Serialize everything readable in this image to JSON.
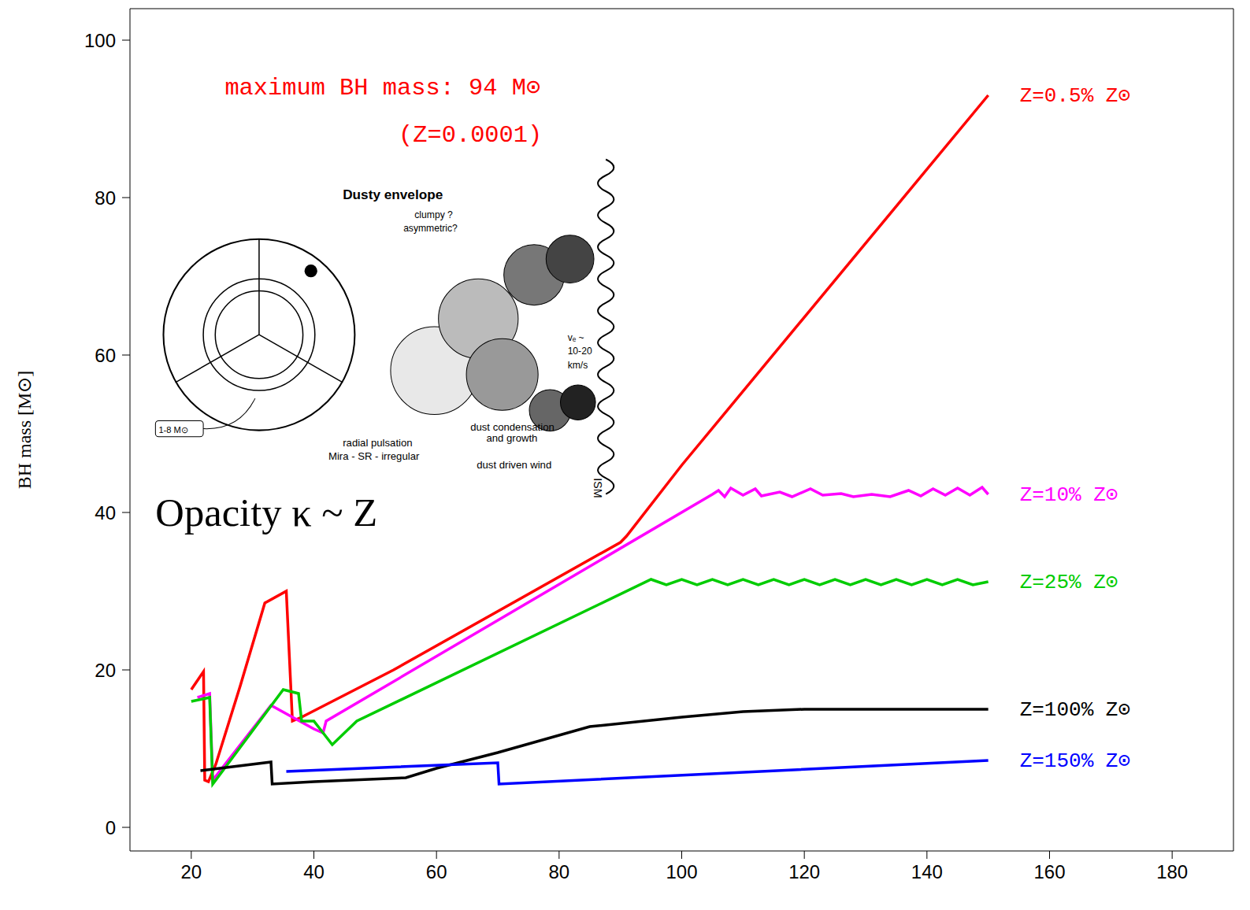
{
  "chart_data": {
    "type": "line",
    "xlim": [
      10,
      190
    ],
    "xticks": [
      20,
      40,
      60,
      80,
      100,
      120,
      140,
      160,
      180
    ],
    "ylim": [
      -3,
      104
    ],
    "yticks": [
      0,
      20,
      40,
      60,
      80,
      100
    ],
    "y_label": "BH mass [M⊙]",
    "annotations": [
      "maximum BH mass: 94 M⊙",
      "(Z=0.0001)",
      "Opacity κ ~ Z"
    ],
    "series": [
      {
        "name": "Z=0.5% Z⊙",
        "color": "#ff0000",
        "x": [
          20,
          22,
          22.2,
          22.8,
          24,
          28,
          32,
          35.5,
          36.5,
          38,
          53,
          90,
          91,
          100,
          150
        ],
        "values": [
          17.5,
          19.8,
          6,
          5.8,
          8,
          18,
          28.5,
          30,
          13.5,
          14,
          20,
          36.2,
          37,
          46,
          93
        ]
      },
      {
        "name": "Z=10% Z⊙",
        "color": "#ff00ff",
        "x": [
          21,
          23,
          23.5,
          24,
          33,
          36.5,
          40,
          41.5,
          42,
          105,
          106,
          107,
          108,
          110,
          112,
          113,
          116,
          118,
          121,
          123,
          126,
          128,
          131,
          134,
          137,
          139,
          141,
          143,
          145,
          147,
          149,
          150
        ],
        "values": [
          16.5,
          17,
          6,
          6.5,
          15.5,
          14,
          12.5,
          12,
          13.5,
          42.3,
          42.8,
          42,
          43.1,
          42.2,
          43,
          42.1,
          42.6,
          42,
          43,
          42.2,
          42.4,
          42,
          42.3,
          42,
          42.8,
          42.1,
          43,
          42.2,
          43.1,
          42.2,
          43.2,
          42.3
        ]
      },
      {
        "name": "Z=25% Z⊙",
        "color": "#00cc00",
        "x": [
          20,
          23,
          23.5,
          24,
          35,
          37.5,
          38,
          40,
          43,
          47,
          95,
          97.5,
          100,
          102.5,
          105,
          107.5,
          110,
          112.5,
          115,
          117.5,
          120,
          122.5,
          125,
          127.5,
          130,
          132.5,
          135,
          137.5,
          140,
          142.5,
          145,
          147.5,
          150
        ],
        "values": [
          16,
          16.5,
          5.5,
          6,
          17.5,
          17,
          13.5,
          13.5,
          10.5,
          13.5,
          31.5,
          30.8,
          31.5,
          30.8,
          31.5,
          30.8,
          31.5,
          30.8,
          31.5,
          30.8,
          31.5,
          30.8,
          31.5,
          30.8,
          31.5,
          30.8,
          31.5,
          30.8,
          31.5,
          30.8,
          31.5,
          30.8,
          31.2
        ]
      },
      {
        "name": "Z=100% Z⊙",
        "color": "#000000",
        "x": [
          21.5,
          33,
          33.2,
          40,
          55,
          60,
          70,
          85,
          100,
          110,
          120,
          150
        ],
        "values": [
          7.2,
          8.3,
          5.5,
          5.8,
          6.3,
          7.5,
          9.5,
          12.8,
          14,
          14.7,
          15,
          15
        ]
      },
      {
        "name": "Z=150% Z⊙",
        "color": "#0000ff",
        "x": [
          35.5,
          70,
          70.2,
          150
        ],
        "values": [
          7.1,
          8.2,
          5.5,
          8.5
        ]
      }
    ],
    "inset": {
      "title": "Dusty envelope",
      "notes": [
        "clumpy ?",
        "asymmetric?"
      ],
      "velocity": [
        "vₑ ~",
        "10-20",
        "km/s"
      ],
      "medium": "ISM",
      "condensation": [
        "dust condensation",
        "and growth"
      ],
      "wind": "dust driven wind",
      "pulsation": [
        "radial pulsation",
        "Mira - SR - irregular"
      ],
      "tag": "1-8 M⊙"
    }
  }
}
